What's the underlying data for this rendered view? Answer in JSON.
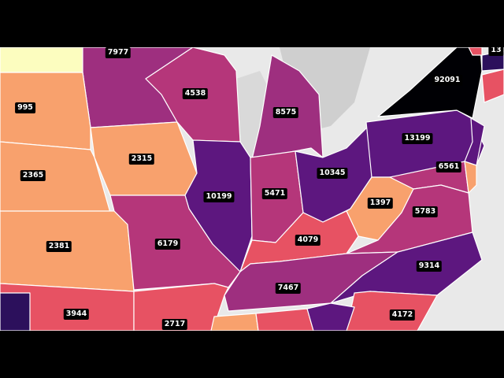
{
  "map": {
    "states": [
      {
        "key": "nd_corner",
        "value": "",
        "color": "#fcfdbf"
      },
      {
        "key": "mn",
        "value": "7977",
        "color": "#9e2f7f"
      },
      {
        "key": "sd",
        "value": "995",
        "color": "#f8a16d"
      },
      {
        "key": "ne",
        "value": "2365",
        "color": "#f8a16d"
      },
      {
        "key": "ks",
        "value": "2381",
        "color": "#f8a16d"
      },
      {
        "key": "ia",
        "value": "2315",
        "color": "#f8a16d"
      },
      {
        "key": "wi",
        "value": "4538",
        "color": "#b5367a"
      },
      {
        "key": "mi",
        "value": "8575",
        "color": "#9e2f7f"
      },
      {
        "key": "il",
        "value": "10199",
        "color": "#5d177f"
      },
      {
        "key": "in",
        "value": "5471",
        "color": "#b5367a"
      },
      {
        "key": "oh",
        "value": "10345",
        "color": "#5d177f"
      },
      {
        "key": "pa",
        "value": "13199",
        "color": "#5d177f"
      },
      {
        "key": "ny",
        "value": "92091",
        "color": "#000004"
      },
      {
        "key": "nj",
        "value": "6561",
        "color": "#5d177f"
      },
      {
        "key": "md",
        "value": "",
        "color": "#b5367a"
      },
      {
        "key": "de",
        "value": "",
        "color": "#f8a16d"
      },
      {
        "key": "wv",
        "value": "1397",
        "color": "#f8a16d"
      },
      {
        "key": "va",
        "value": "5783",
        "color": "#b5367a"
      },
      {
        "key": "ky",
        "value": "4079",
        "color": "#e75263"
      },
      {
        "key": "mo",
        "value": "6179",
        "color": "#b5367a"
      },
      {
        "key": "tn",
        "value": "7467",
        "color": "#9e2f7f"
      },
      {
        "key": "nc",
        "value": "9314",
        "color": "#5d177f"
      },
      {
        "key": "ok",
        "value": "3944",
        "color": "#e75263"
      },
      {
        "key": "ar",
        "value": "2717",
        "color": "#e75263"
      },
      {
        "key": "sc",
        "value": "4172",
        "color": "#e75263"
      },
      {
        "key": "co_corner",
        "value": "",
        "color": "#2c105c"
      },
      {
        "key": "ms",
        "value": "",
        "color": "#f8a16d"
      },
      {
        "key": "al",
        "value": "",
        "color": "#e75263"
      },
      {
        "key": "ga",
        "value": "",
        "color": "#5d177f"
      },
      {
        "key": "vt",
        "value": "13",
        "color": "#e75263"
      },
      {
        "key": "ct",
        "value": "",
        "color": "#e75263"
      }
    ]
  }
}
